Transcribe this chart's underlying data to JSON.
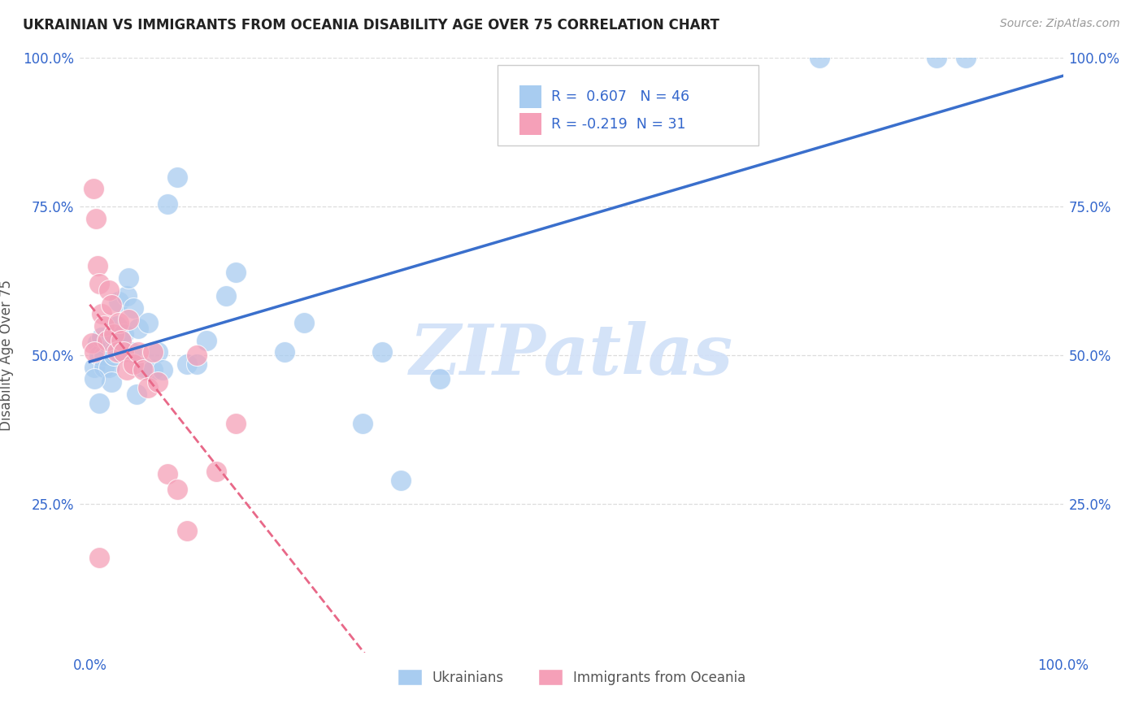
{
  "title": "UKRAINIAN VS IMMIGRANTS FROM OCEANIA DISABILITY AGE OVER 75 CORRELATION CHART",
  "source": "Source: ZipAtlas.com",
  "ylabel": "Disability Age Over 75",
  "R1": 0.607,
  "N1": 46,
  "R2": -0.219,
  "N2": 31,
  "blue_scatter_color": "#A8CCF0",
  "blue_line_color": "#3A6FCC",
  "pink_scatter_color": "#F5A0B8",
  "pink_line_color": "#E86888",
  "watermark_color": "#D0E0F8",
  "legend_label1": "Ukrainians",
  "legend_label2": "Immigrants from Oceania",
  "grid_color": "#DDDDDD",
  "axis_color": "#3366CC",
  "title_color": "#222222",
  "source_color": "#999999",
  "blue_x": [
    0.005,
    0.008,
    0.01,
    0.012,
    0.015,
    0.015,
    0.018,
    0.02,
    0.022,
    0.025,
    0.025,
    0.025,
    0.028,
    0.03,
    0.032,
    0.035,
    0.038,
    0.04,
    0.042,
    0.045,
    0.048,
    0.05,
    0.055,
    0.06,
    0.065,
    0.07,
    0.075,
    0.08,
    0.09,
    0.1,
    0.11,
    0.12,
    0.14,
    0.15,
    0.2,
    0.22,
    0.28,
    0.3,
    0.32,
    0.36,
    0.75,
    0.87,
    0.9,
    0.005,
    0.01,
    0.03
  ],
  "blue_y": [
    0.48,
    0.52,
    0.5,
    0.53,
    0.5,
    0.48,
    0.52,
    0.48,
    0.455,
    0.53,
    0.505,
    0.5,
    0.55,
    0.59,
    0.525,
    0.535,
    0.6,
    0.63,
    0.505,
    0.58,
    0.435,
    0.545,
    0.48,
    0.555,
    0.475,
    0.505,
    0.475,
    0.755,
    0.8,
    0.485,
    0.485,
    0.525,
    0.6,
    0.64,
    0.505,
    0.555,
    0.385,
    0.505,
    0.29,
    0.46,
    1.0,
    1.0,
    1.0,
    0.46,
    0.42,
    0.505
  ],
  "pink_x": [
    0.002,
    0.004,
    0.006,
    0.008,
    0.01,
    0.012,
    0.015,
    0.018,
    0.02,
    0.022,
    0.025,
    0.028,
    0.03,
    0.032,
    0.035,
    0.038,
    0.04,
    0.045,
    0.05,
    0.055,
    0.06,
    0.065,
    0.07,
    0.08,
    0.09,
    0.1,
    0.11,
    0.13,
    0.15,
    0.005,
    0.01
  ],
  "pink_y": [
    0.52,
    0.78,
    0.73,
    0.65,
    0.62,
    0.57,
    0.55,
    0.525,
    0.61,
    0.585,
    0.535,
    0.505,
    0.555,
    0.525,
    0.505,
    0.475,
    0.56,
    0.485,
    0.505,
    0.475,
    0.445,
    0.505,
    0.455,
    0.3,
    0.275,
    0.205,
    0.5,
    0.305,
    0.385,
    0.505,
    0.16
  ]
}
